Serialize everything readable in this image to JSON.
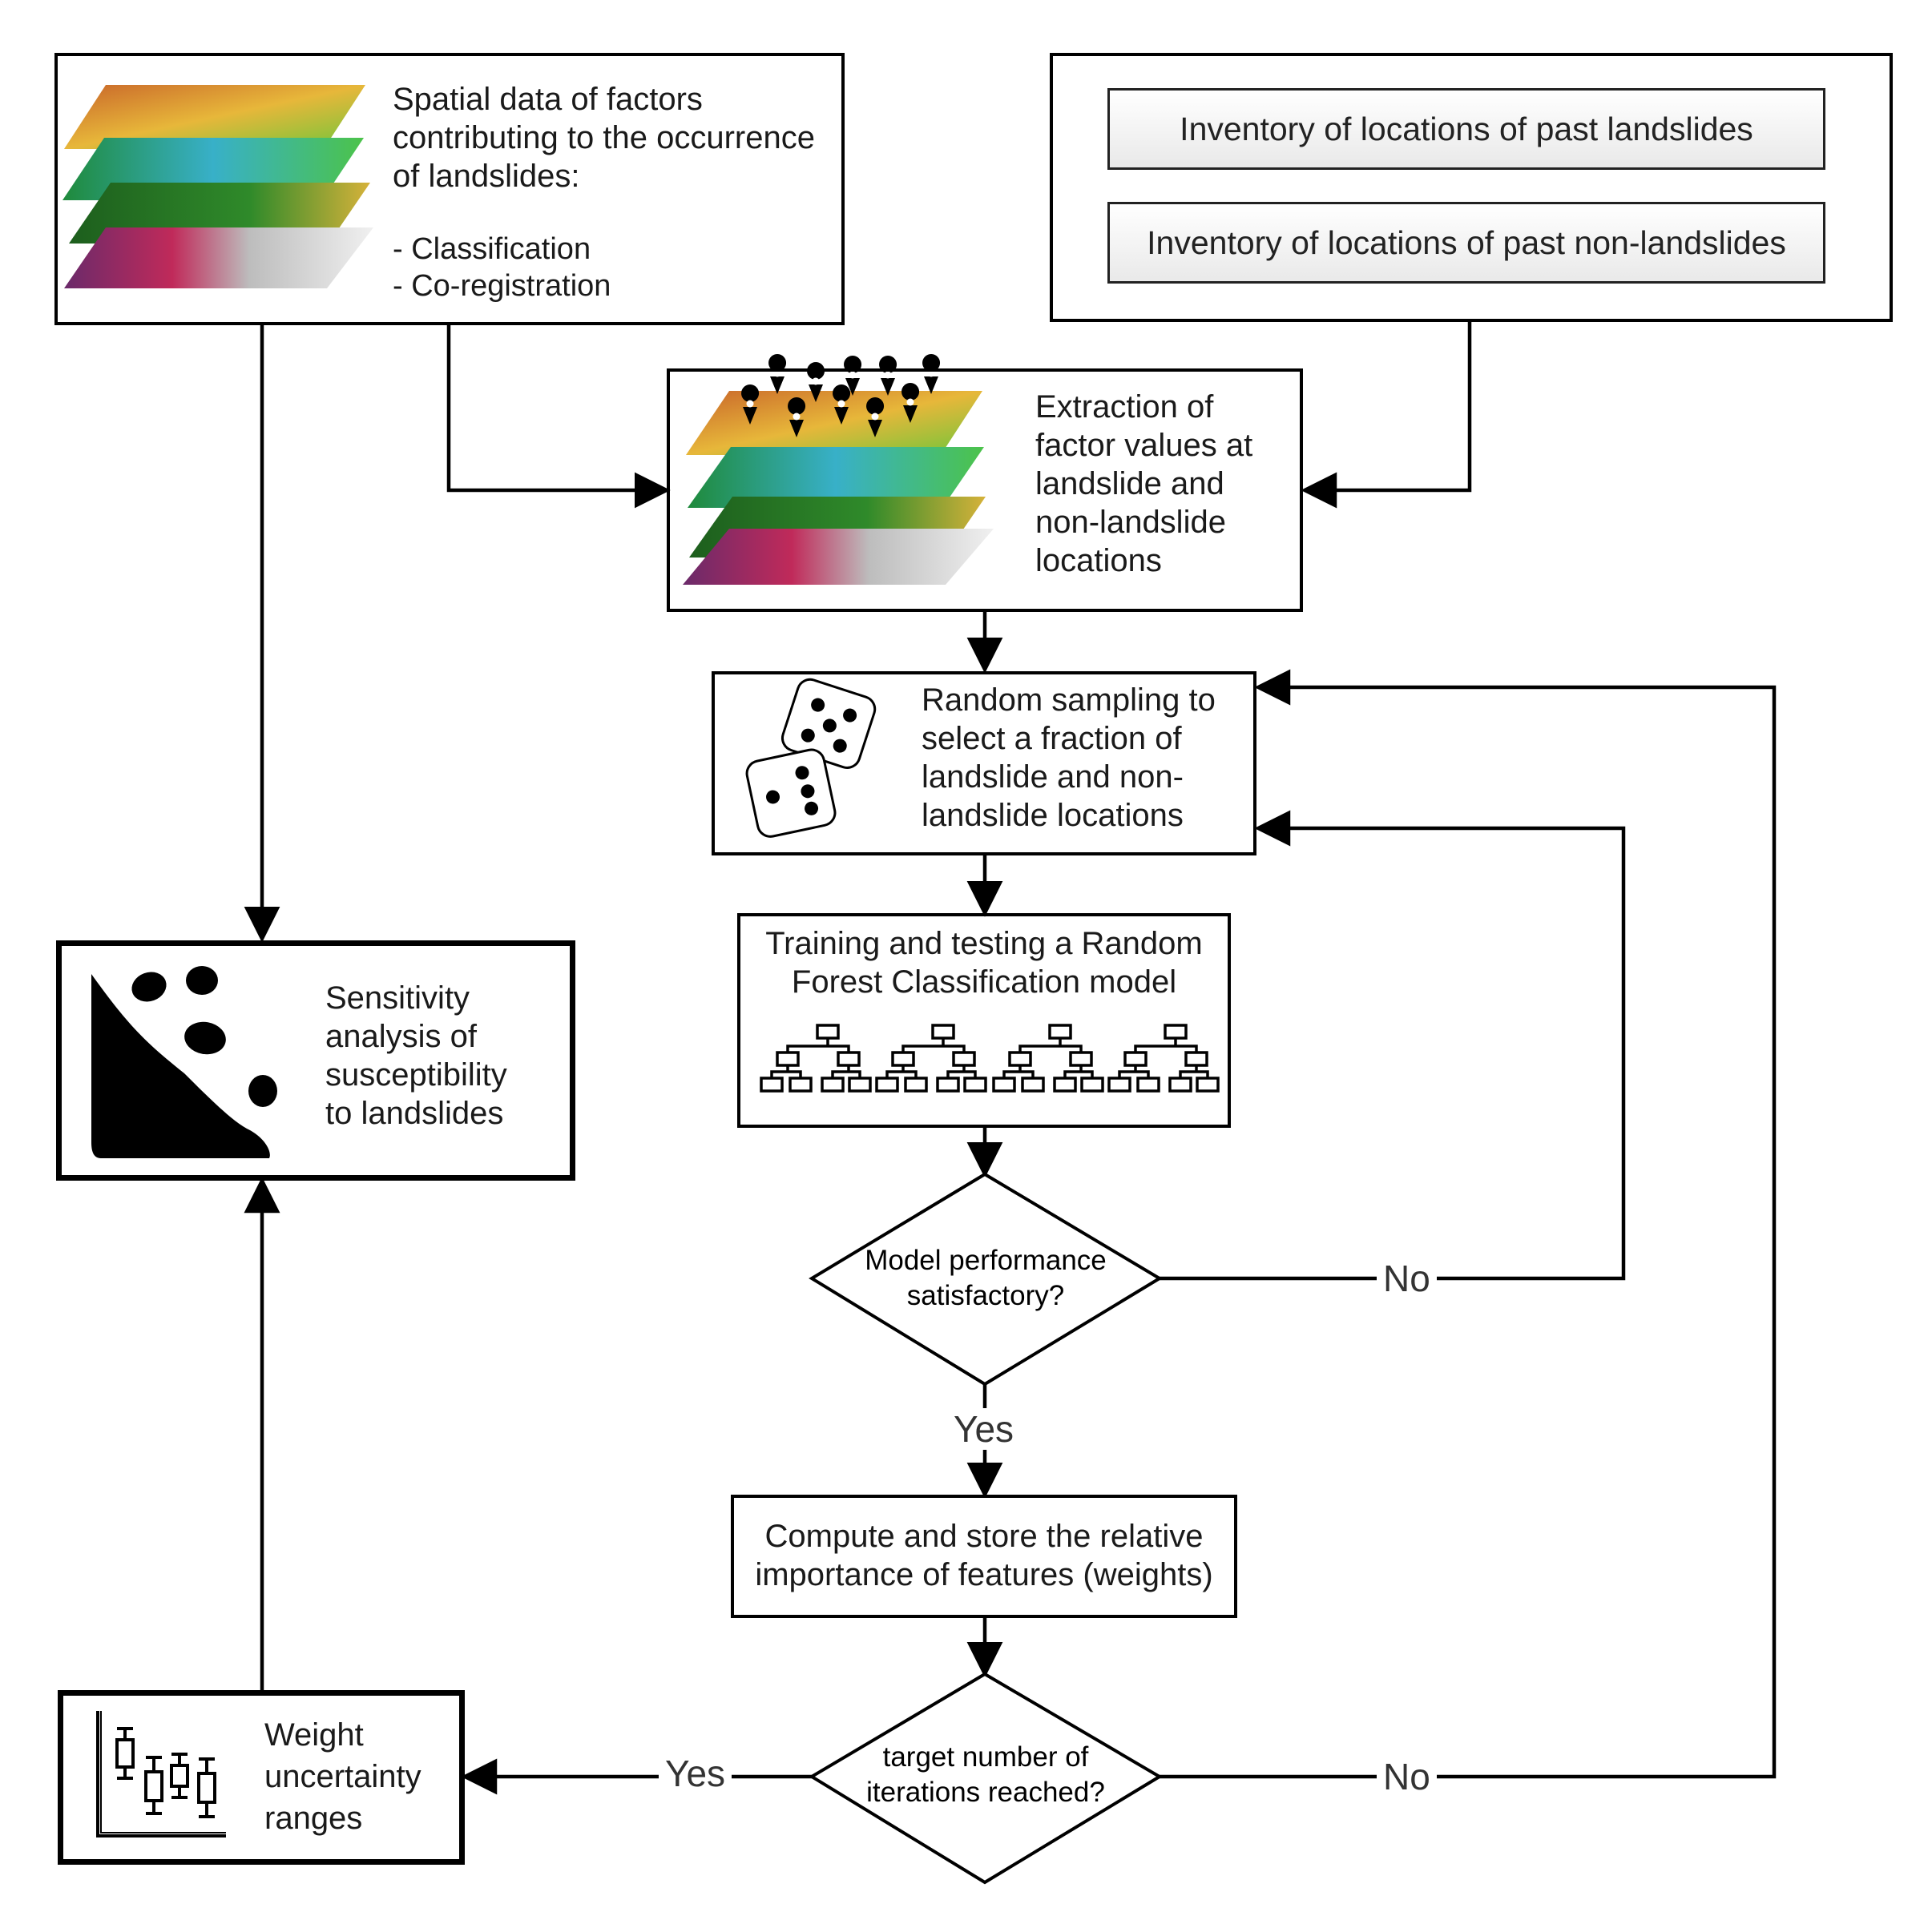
{
  "spatial_box": {
    "title": "Spatial data of factors\ncontributing to the occurrence\nof landslides:",
    "items": "- Classification\n- Co-registration"
  },
  "inventory_box": {
    "landslides": "Inventory of locations of past landslides",
    "non_landslides": "Inventory of locations of past non-landslides"
  },
  "extraction_box": {
    "text": "Extraction of\nfactor values at\nlandslide and\nnon-landslide\nlocations"
  },
  "sampling_box": {
    "text": "Random sampling to\nselect a fraction of\nlandslide and non-\nlandslide locations"
  },
  "training_box": {
    "text": "Training and testing a Random\nForest Classification model"
  },
  "performance_decision": {
    "text": "Model performance\nsatisfactory?"
  },
  "compute_box": {
    "text": "Compute and store the relative\nimportance of features (weights)"
  },
  "iterations_decision": {
    "text": "target number of\niterations reached?"
  },
  "sensitivity_box": {
    "text": "Sensitivity\nanalysis of\nsusceptibility\nto landslides"
  },
  "weight_box": {
    "text": "Weight\nuncertainty\nranges"
  },
  "labels": {
    "yes": "Yes",
    "no": "No"
  },
  "colors": {
    "sensitivity_fill": "#fdeeee",
    "weight_fill": "#d9f2e6",
    "line": "#000000"
  },
  "icons": [
    "map-layers-icon",
    "map-pin-icon",
    "dice-icon",
    "decision-tree-icon",
    "rockfall-icon",
    "boxplot-icon"
  ]
}
